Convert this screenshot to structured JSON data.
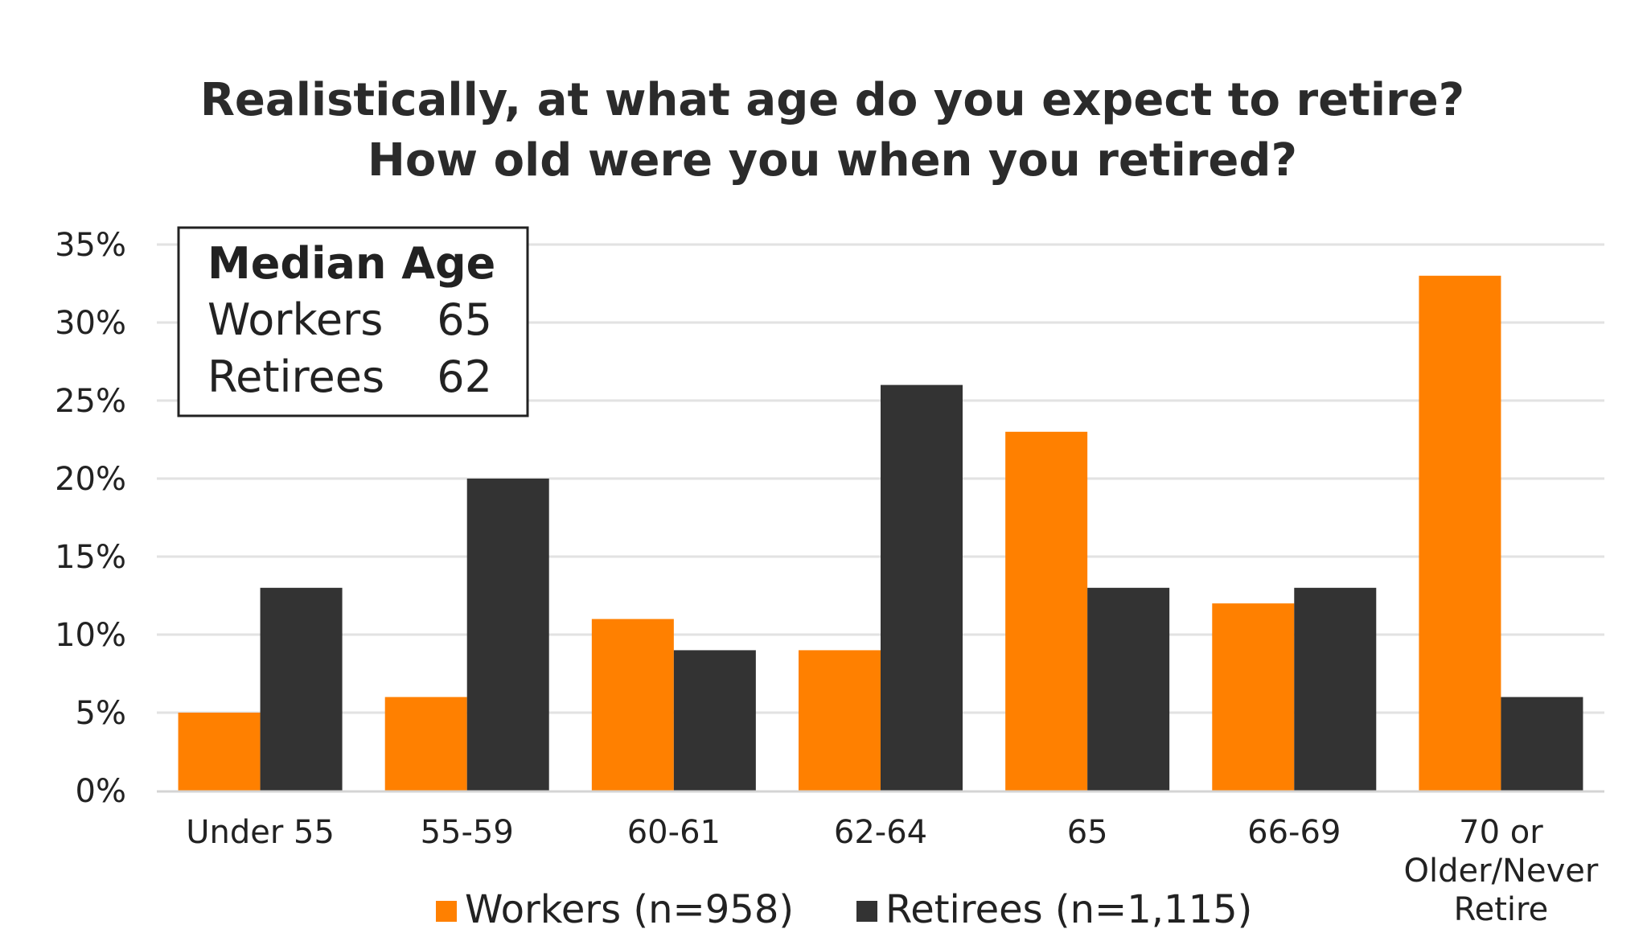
{
  "chart_data": {
    "type": "bar",
    "title_lines": [
      "Realistically, at what age do you expect to retire?",
      "How old were you when you retired?"
    ],
    "categories": [
      [
        "Under 55"
      ],
      [
        "55-59"
      ],
      [
        "60-61"
      ],
      [
        "62-64"
      ],
      [
        "65"
      ],
      [
        "66-69"
      ],
      [
        "70 or",
        "Older/Never",
        "Retire"
      ]
    ],
    "series": [
      {
        "name": "Workers (n=958)",
        "color": "#FF8000",
        "values": [
          5,
          6,
          11,
          9,
          23,
          12,
          33
        ]
      },
      {
        "name": "Retirees (n=1,115)",
        "color": "#333333",
        "values": [
          13,
          20,
          9,
          26,
          13,
          13,
          6
        ]
      }
    ],
    "y_ticks": [
      0,
      5,
      10,
      15,
      20,
      25,
      30,
      35
    ],
    "y_tick_labels": [
      "0%",
      "5%",
      "10%",
      "15%",
      "20%",
      "25%",
      "30%",
      "35%"
    ],
    "ylim": [
      0,
      35
    ],
    "grid": true,
    "legend_position": "bottom-center",
    "annotation_box": {
      "heading": "Median Age",
      "rows": [
        {
          "label": "Workers",
          "value": "65"
        },
        {
          "label": "Retirees",
          "value": "62"
        }
      ]
    }
  }
}
